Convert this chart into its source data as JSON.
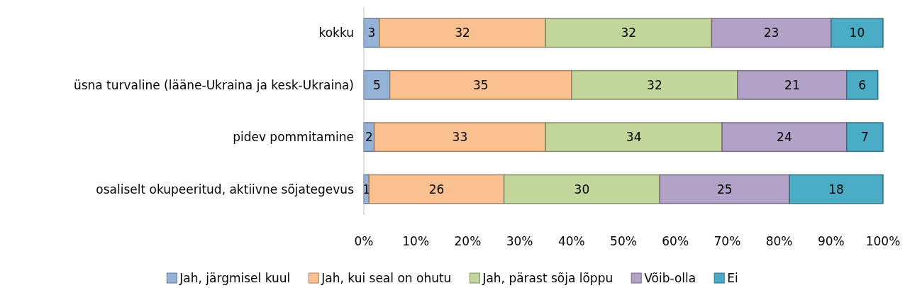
{
  "chart_data": {
    "type": "bar",
    "orientation": "horizontal",
    "stacked": true,
    "categories": [
      "kokku",
      "üsna turvaline (lääne-Ukraina ja kesk-Ukraina)",
      "pidev pommitamine",
      "osaliselt okupeeritud, aktiivne sõjategevus"
    ],
    "series": [
      {
        "name": "Jah, järgmisel kuul",
        "color": "#95b3d7",
        "values": [
          3,
          5,
          2,
          1
        ]
      },
      {
        "name": "Jah, kui seal on ohutu",
        "color": "#fac090",
        "values": [
          32,
          35,
          33,
          26
        ]
      },
      {
        "name": "Jah, pärast sõja lõppu",
        "color": "#c3d69b",
        "values": [
          32,
          32,
          34,
          30
        ]
      },
      {
        "name": "Võib-olla",
        "color": "#b3a2c7",
        "values": [
          23,
          21,
          24,
          25
        ]
      },
      {
        "name": "Ei",
        "color": "#4bacc6",
        "values": [
          10,
          6,
          7,
          18
        ]
      }
    ],
    "xlim": [
      0,
      100
    ],
    "xticks": [
      {
        "value": 0,
        "label": "0%"
      },
      {
        "value": 10,
        "label": "10%"
      },
      {
        "value": 20,
        "label": "20%"
      },
      {
        "value": 30,
        "label": "30%"
      },
      {
        "value": 40,
        "label": "40%"
      },
      {
        "value": 50,
        "label": "50%"
      },
      {
        "value": 60,
        "label": "60%"
      },
      {
        "value": 70,
        "label": "70%"
      },
      {
        "value": 80,
        "label": "80%"
      },
      {
        "value": 90,
        "label": "90%"
      },
      {
        "value": 100,
        "label": "100%"
      }
    ],
    "data_labels": true,
    "legend": "bottom",
    "grid": false
  }
}
